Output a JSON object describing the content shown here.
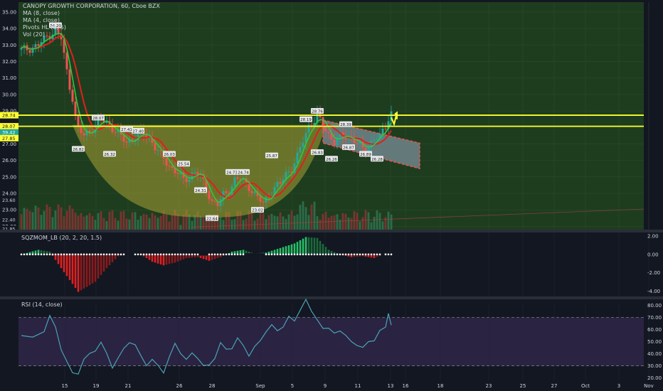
{
  "main_legend": [
    "CANOPY GROWTH CORPORATION, 60, Cboe BZX",
    "MA (8, close)",
    "MA (4, close)",
    "Pivots HL (5, 5)",
    "Vol (20)"
  ],
  "osc_legend": "SQZMOM_LB (20, 2, 20, 1.5)",
  "rsi_legend": "RSI (14, close)",
  "colors": {
    "background": "#131722",
    "main_pane": "#1e3d1f",
    "rsi_band": "#2a2342",
    "up": "#26a69a",
    "down": "#ef5350",
    "ma_fast": "#2ecc40",
    "ma_slow": "#e0201d",
    "horizontal_line": "#ffff33",
    "cup_fill": "#a7a233",
    "channel_fill": "#8a9aaa",
    "rsi_line": "#4aa3b5"
  },
  "chart_data": [
    {
      "type": "candlestick",
      "pane": "price",
      "y_ticks": [
        "35.00",
        "34.00",
        "33.00",
        "32.00",
        "31.00",
        "30.00",
        "29.00",
        "28.00",
        "27.00",
        "26.00",
        "25.00",
        "24.00",
        "23.00",
        "22.00"
      ],
      "y_range": [
        21.8,
        35.6
      ],
      "horizontal_lines": [
        28.74,
        28.07
      ],
      "price_labels": [
        "28.74",
        "28.07",
        "39.42",
        "27.85",
        "22.40",
        "23.60",
        "21.85"
      ],
      "x_ticks": [
        "15",
        "19",
        "21",
        "26",
        "28",
        "Sep",
        "5",
        "9",
        "11",
        "13",
        "16",
        "18",
        "23",
        "25",
        "27",
        "Oct",
        "3",
        "Nov"
      ],
      "close_path": [
        [
          0,
          32.7
        ],
        [
          3,
          32.8
        ],
        [
          6,
          33.0
        ],
        [
          9,
          33.5
        ],
        [
          12,
          33.9
        ],
        [
          14,
          33.4
        ],
        [
          15,
          32.4
        ],
        [
          16,
          31.4
        ],
        [
          17,
          30.5
        ],
        [
          18,
          29.8
        ],
        [
          19,
          28.6
        ],
        [
          20,
          27.9
        ],
        [
          22,
          27.5
        ],
        [
          24,
          27.8
        ],
        [
          26,
          28.1
        ],
        [
          28,
          28.4
        ],
        [
          30,
          28.3
        ],
        [
          33,
          27.8
        ],
        [
          35,
          27.4
        ],
        [
          37,
          27.1
        ],
        [
          39,
          27.3
        ],
        [
          41,
          27.5
        ],
        [
          43,
          27.6
        ],
        [
          45,
          27.4
        ],
        [
          47,
          26.8
        ],
        [
          49,
          26.3
        ],
        [
          51,
          25.9
        ],
        [
          53,
          25.5
        ],
        [
          55,
          25.2
        ],
        [
          57,
          24.8
        ],
        [
          59,
          25.0
        ],
        [
          61,
          25.3
        ],
        [
          63,
          25.0
        ],
        [
          65,
          24.3
        ],
        [
          67,
          23.5
        ],
        [
          69,
          23.3
        ],
        [
          71,
          23.9
        ],
        [
          73,
          24.2
        ],
        [
          75,
          24.8
        ],
        [
          77,
          24.9
        ],
        [
          79,
          24.6
        ],
        [
          81,
          24.2
        ],
        [
          83,
          23.7
        ],
        [
          85,
          23.4
        ],
        [
          87,
          23.9
        ],
        [
          89,
          24.3
        ],
        [
          91,
          24.6
        ],
        [
          93,
          25.2
        ],
        [
          95,
          25.5
        ],
        [
          97,
          26.2
        ],
        [
          99,
          27.2
        ],
        [
          101,
          28.1
        ],
        [
          103,
          28.4
        ],
        [
          104,
          28.7
        ],
        [
          106,
          28.1
        ],
        [
          108,
          27.6
        ],
        [
          110,
          27.1
        ],
        [
          112,
          27.4
        ],
        [
          114,
          27.5
        ],
        [
          116,
          27.4
        ],
        [
          118,
          27.0
        ],
        [
          120,
          26.7
        ],
        [
          122,
          26.9
        ],
        [
          124,
          27.3
        ],
        [
          126,
          27.4
        ],
        [
          128,
          28.1
        ],
        [
          129,
          28.6
        ],
        [
          130,
          28.9
        ]
      ],
      "pivot_labels": [
        {
          "text": "34.20",
          "x": 12,
          "y": 34.2
        },
        {
          "text": "28.07",
          "x": 27,
          "y": 28.6
        },
        {
          "text": "26.82",
          "x": 20,
          "y": 26.7
        },
        {
          "text": "26.32",
          "x": 31,
          "y": 26.4
        },
        {
          "text": "27.41",
          "x": 37,
          "y": 27.9
        },
        {
          "text": "27.40",
          "x": 41,
          "y": 27.8
        },
        {
          "text": "26.03",
          "x": 52,
          "y": 26.4
        },
        {
          "text": "25.54",
          "x": 57,
          "y": 25.8
        },
        {
          "text": "24.31",
          "x": 63,
          "y": 24.2
        },
        {
          "text": "22.64",
          "x": 67,
          "y": 22.5
        },
        {
          "text": "24.73",
          "x": 74,
          "y": 25.3
        },
        {
          "text": "24.74",
          "x": 78,
          "y": 25.3
        },
        {
          "text": "23.02",
          "x": 83,
          "y": 23.0
        },
        {
          "text": "25.87",
          "x": 88,
          "y": 26.3
        },
        {
          "text": "28.19",
          "x": 100,
          "y": 28.5
        },
        {
          "text": "28.76",
          "x": 104,
          "y": 29.0
        },
        {
          "text": "26.83",
          "x": 104,
          "y": 26.5
        },
        {
          "text": "26.26",
          "x": 109,
          "y": 26.1
        },
        {
          "text": "28.39",
          "x": 114,
          "y": 28.2
        },
        {
          "text": "26.87",
          "x": 115,
          "y": 26.8
        },
        {
          "text": "26.89",
          "x": 121,
          "y": 26.4
        },
        {
          "text": "26.28",
          "x": 125,
          "y": 26.1
        }
      ]
    },
    {
      "type": "histogram",
      "pane": "squeeze_momentum",
      "y_ticks": [
        "2.00",
        "0.00",
        "-2.00",
        "-4.00"
      ],
      "y_range": [
        -4.6,
        2.4
      ]
    },
    {
      "type": "line",
      "pane": "rsi",
      "y_ticks": [
        "80.00",
        "70.00",
        "60.00",
        "50.00",
        "40.00",
        "30.00",
        "20.00"
      ],
      "y_range": [
        18,
        85
      ],
      "levels": [
        70,
        30
      ]
    }
  ]
}
